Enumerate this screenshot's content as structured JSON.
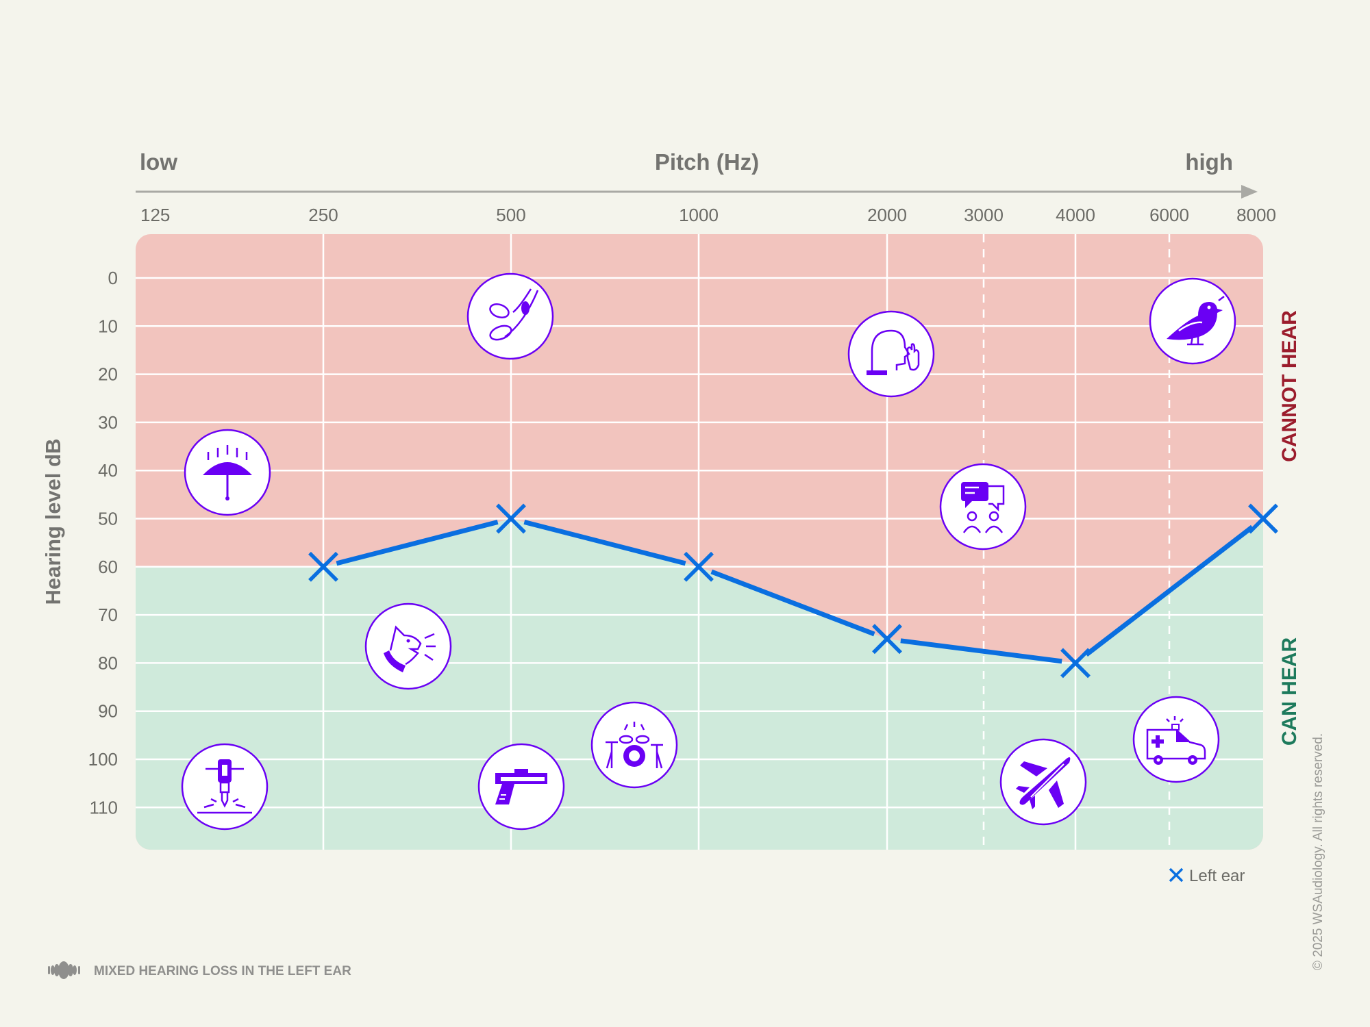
{
  "chart_data": {
    "type": "line",
    "title": "Pitch (Hz)",
    "xlabel_low": "low",
    "xlabel_high": "high",
    "ylabel": "Hearing level dB",
    "x_scale": "log",
    "x_ticks": [
      125,
      250,
      500,
      1000,
      2000,
      3000,
      4000,
      6000,
      8000
    ],
    "x_tick_labels": [
      "125",
      "250",
      "500",
      "1000",
      "2000",
      "3000",
      "4000",
      "6000",
      "8000"
    ],
    "x_dashed_ticks": [
      3000,
      6000
    ],
    "y_ticks": [
      0,
      10,
      20,
      30,
      40,
      50,
      60,
      70,
      80,
      90,
      100,
      110
    ],
    "y_tick_labels": [
      "0",
      "10",
      "20",
      "30",
      "40",
      "50",
      "60",
      "70",
      "80",
      "90",
      "100",
      "110"
    ],
    "ylim": [
      -10,
      120
    ],
    "y_inverted": true,
    "grid": true,
    "series": [
      {
        "name": "Left ear",
        "marker": "x",
        "color": "#0a6fe0",
        "x": [
          250,
          500,
          1000,
          2000,
          4000,
          8000
        ],
        "y": [
          60,
          50,
          60,
          75,
          80,
          50
        ]
      }
    ],
    "legend": {
      "position": "bottom-right",
      "entries": [
        "Left ear"
      ]
    },
    "zones": [
      {
        "label": "CANNOT HEAR",
        "color": "#f2c4be",
        "text_color": "#9b1c2c"
      },
      {
        "label": "CAN HEAR",
        "color": "#cfeadb",
        "text_color": "#1d7a5c"
      }
    ],
    "sound_icons": [
      {
        "icon": "rain-umbrella-icon",
        "hz": 177,
        "db": 40
      },
      {
        "icon": "rustling-leaves-icon",
        "hz": 500,
        "db": 8
      },
      {
        "icon": "whisper-icon",
        "hz": 2000,
        "db": 16
      },
      {
        "icon": "bird-chirping-icon",
        "hz": 7000,
        "db": 9
      },
      {
        "icon": "conversation-icon",
        "hz": 3000,
        "db": 48
      },
      {
        "icon": "barking-dog-icon",
        "hz": 350,
        "db": 76
      },
      {
        "icon": "jackhammer-icon",
        "hz": 175,
        "db": 106
      },
      {
        "icon": "gunshot-icon",
        "hz": 520,
        "db": 106
      },
      {
        "icon": "drums-icon",
        "hz": 790,
        "db": 97
      },
      {
        "icon": "airplane-icon",
        "hz": 3600,
        "db": 105
      },
      {
        "icon": "ambulance-siren-icon",
        "hz": 5700,
        "db": 96
      }
    ]
  },
  "footer": {
    "title": "MIXED HEARING LOSS IN THE LEFT EAR",
    "icon": "sound-wave-icon"
  },
  "copyright": "© 2025 WSAudiology. All rights reserved.",
  "colors": {
    "background": "#f4f4ec",
    "line": "#0a6fe0",
    "icon": "#6a00f4",
    "grid": "#ffffff"
  }
}
